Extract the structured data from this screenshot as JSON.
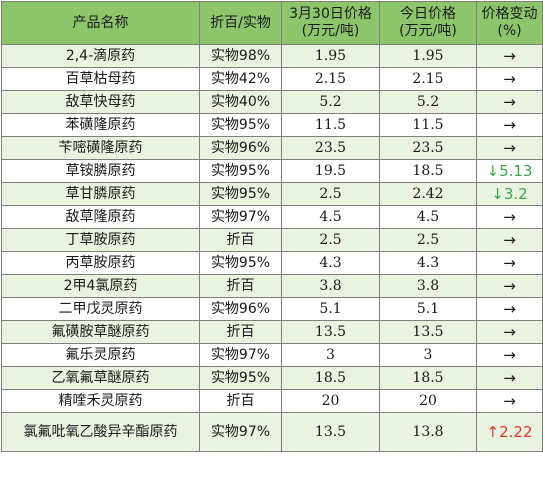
{
  "headers": {
    "name": "产品名称",
    "spec": "折百/实物",
    "old_price_line1": "3月30日价格",
    "old_price_line2": "(万元/吨)",
    "new_price_line1": "今日价格",
    "new_price_line2": "(万元/吨)",
    "change_line1": "价格变动",
    "change_line2": "(%)"
  },
  "colors": {
    "header_bg": "#8cc56a",
    "stripe_bg": "#e9f3df",
    "down_color": "#3aa84a",
    "up_color": "#e03a2e"
  },
  "rows": [
    {
      "name": "2,4-滴原药",
      "spec": "实物98%",
      "old": "1.95",
      "new": "1.95",
      "change": "→"
    },
    {
      "name": "百草枯母药",
      "spec": "实物42%",
      "old": "2.15",
      "new": "2.15",
      "change": "→"
    },
    {
      "name": "敌草快母药",
      "spec": "实物40%",
      "old": "5.2",
      "new": "5.2",
      "change": "→"
    },
    {
      "name": "苯磺隆原药",
      "spec": "实物95%",
      "old": "11.5",
      "new": "11.5",
      "change": "→"
    },
    {
      "name": "苄嘧磺隆原药",
      "spec": "实物96%",
      "old": "23.5",
      "new": "23.5",
      "change": "→"
    },
    {
      "name": "草铵膦原药",
      "spec": "实物95%",
      "old": "19.5",
      "new": "18.5",
      "change": "↓5.13"
    },
    {
      "name": "草甘膦原药",
      "spec": "实物95%",
      "old": "2.5",
      "new": "2.42",
      "change": "↓3.2"
    },
    {
      "name": "敌草隆原药",
      "spec": "实物97%",
      "old": "4.5",
      "new": "4.5",
      "change": "→"
    },
    {
      "name": "丁草胺原药",
      "spec": "折百",
      "old": "2.5",
      "new": "2.5",
      "change": "→"
    },
    {
      "name": "丙草胺原药",
      "spec": "实物95%",
      "old": "4.3",
      "new": "4.3",
      "change": "→"
    },
    {
      "name": "2甲4氯原药",
      "spec": "折百",
      "old": "3.8",
      "new": "3.8",
      "change": "→"
    },
    {
      "name": "二甲戊灵原药",
      "spec": "实物96%",
      "old": "5.1",
      "new": "5.1",
      "change": "→"
    },
    {
      "name": "氟磺胺草醚原药",
      "spec": "折百",
      "old": "13.5",
      "new": "13.5",
      "change": "→"
    },
    {
      "name": "氟乐灵原药",
      "spec": "实物97%",
      "old": "3",
      "new": "3",
      "change": "→"
    },
    {
      "name": "乙氧氟草醚原药",
      "spec": "实物95%",
      "old": "18.5",
      "new": "18.5",
      "change": "→"
    },
    {
      "name": "精喹禾灵原药",
      "spec": "折百",
      "old": "20",
      "new": "20",
      "change": "→"
    },
    {
      "name": "氯氟吡氧乙酸异辛酯原药",
      "spec": "实物97%",
      "old": "13.5",
      "new": "13.8",
      "change": "↑2.22"
    }
  ]
}
